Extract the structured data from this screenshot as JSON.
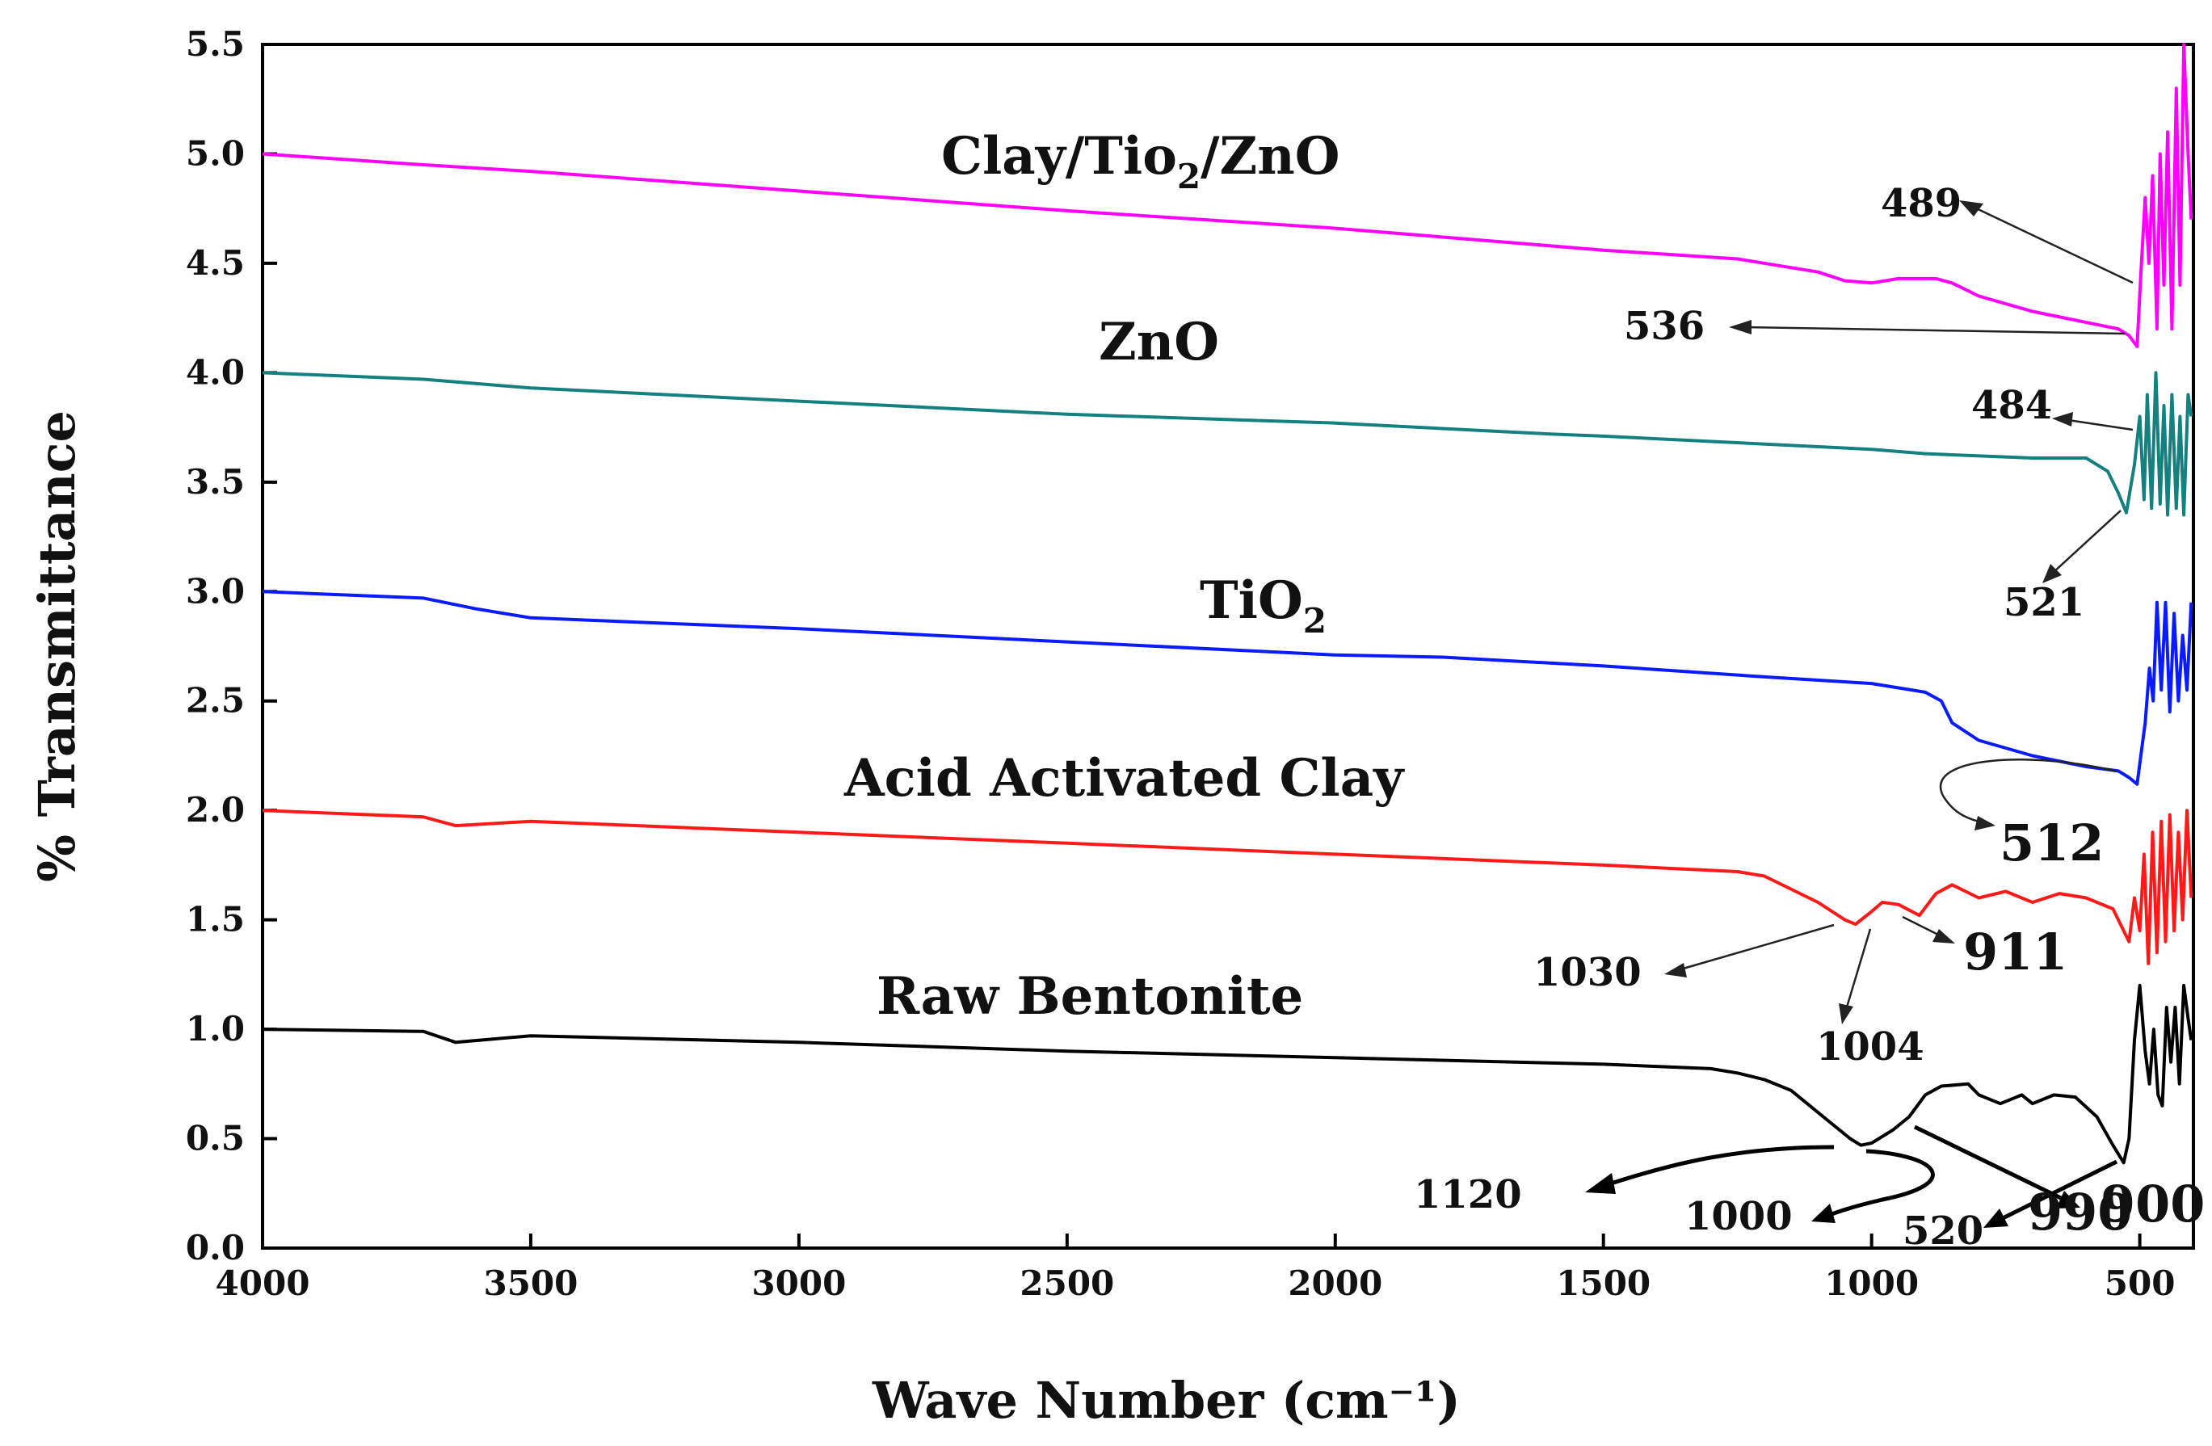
{
  "chart_data": {
    "type": "line",
    "title": "",
    "xlabel": "Wave Number (cm⁻¹)",
    "ylabel": "% Transmittance",
    "xlim": [
      4000,
      400
    ],
    "ylim": [
      0.0,
      5.5
    ],
    "xticks": [
      "4000",
      "3500",
      "3000",
      "2500",
      "2000",
      "1500",
      "1000",
      "500"
    ],
    "yticks": [
      "0.0",
      "0.5",
      "1.0",
      "1.5",
      "2.0",
      "2.5",
      "3.0",
      "3.5",
      "4.0",
      "4.5",
      "5.0",
      "5.5"
    ],
    "series": [
      {
        "name": "Clay/Tio₂/ZnO",
        "label_parts": [
          "Clay/Tio",
          "2",
          "/ZnO"
        ],
        "color": "#ff00ff",
        "x": [
          4000,
          3700,
          3500,
          3000,
          2500,
          2000,
          1500,
          1250,
          1100,
          1050,
          1000,
          950,
          880,
          850,
          800,
          700,
          600,
          540,
          520,
          505,
          498,
          490,
          483,
          476,
          468,
          462,
          455,
          448,
          440,
          432,
          425,
          418,
          410,
          404
        ],
        "y": [
          5.0,
          4.95,
          4.92,
          4.83,
          4.74,
          4.66,
          4.56,
          4.52,
          4.46,
          4.42,
          4.41,
          4.43,
          4.43,
          4.41,
          4.35,
          4.28,
          4.23,
          4.2,
          4.17,
          4.12,
          4.45,
          4.8,
          4.5,
          4.9,
          4.2,
          5.0,
          4.4,
          5.1,
          4.2,
          5.3,
          4.4,
          5.5,
          5.0,
          4.7
        ]
      },
      {
        "name": "ZnO",
        "label_parts": [
          "ZnO",
          "",
          ""
        ],
        "color": "#158080",
        "x": [
          4000,
          3700,
          3500,
          3000,
          2500,
          2000,
          1600,
          1500,
          1000,
          900,
          700,
          600,
          560,
          540,
          525,
          510,
          500,
          492,
          486,
          478,
          470,
          462,
          455,
          448,
          440,
          432,
          425,
          418,
          410,
          404
        ],
        "y": [
          4.0,
          3.97,
          3.93,
          3.87,
          3.81,
          3.77,
          3.72,
          3.71,
          3.65,
          3.63,
          3.61,
          3.61,
          3.55,
          3.45,
          3.36,
          3.58,
          3.8,
          3.42,
          3.9,
          3.38,
          4.0,
          3.4,
          3.85,
          3.35,
          3.9,
          3.38,
          3.8,
          3.35,
          3.9,
          3.8
        ]
      },
      {
        "name": "TiO₂",
        "label_parts": [
          "TiO",
          "2",
          ""
        ],
        "color": "#0a1cff",
        "x": [
          4000,
          3700,
          3600,
          3500,
          3000,
          2500,
          2000,
          1800,
          1500,
          1200,
          1000,
          900,
          870,
          850,
          800,
          700,
          600,
          540,
          520,
          505,
          498,
          490,
          482,
          475,
          468,
          460,
          452,
          444,
          436,
          428,
          420,
          412,
          404
        ],
        "y": [
          3.0,
          2.97,
          2.92,
          2.88,
          2.83,
          2.77,
          2.71,
          2.7,
          2.66,
          2.61,
          2.58,
          2.54,
          2.5,
          2.4,
          2.32,
          2.25,
          2.2,
          2.18,
          2.15,
          2.12,
          2.25,
          2.4,
          2.65,
          2.5,
          2.95,
          2.55,
          2.95,
          2.45,
          2.9,
          2.5,
          2.8,
          2.55,
          2.95
        ]
      },
      {
        "name": "Acid Activated Clay",
        "label_parts": [
          "Acid Activated Clay",
          "",
          ""
        ],
        "color": "#ff1a1a",
        "x": [
          4000,
          3700,
          3640,
          3500,
          3000,
          2500,
          2000,
          1500,
          1250,
          1200,
          1100,
          1050,
          1030,
          1004,
          980,
          950,
          911,
          880,
          850,
          800,
          750,
          700,
          650,
          600,
          550,
          520,
          510,
          500,
          492,
          484,
          476,
          468,
          460,
          452,
          444,
          436,
          428,
          420,
          412,
          404
        ],
        "y": [
          2.0,
          1.97,
          1.93,
          1.95,
          1.9,
          1.85,
          1.8,
          1.75,
          1.72,
          1.7,
          1.58,
          1.5,
          1.48,
          1.53,
          1.58,
          1.57,
          1.52,
          1.62,
          1.66,
          1.6,
          1.63,
          1.58,
          1.62,
          1.6,
          1.55,
          1.4,
          1.6,
          1.45,
          1.8,
          1.3,
          1.9,
          1.35,
          1.95,
          1.4,
          1.98,
          1.45,
          1.9,
          1.5,
          2.0,
          1.6
        ]
      },
      {
        "name": "Raw Bentonite",
        "label_parts": [
          "Raw Bentonite",
          "",
          ""
        ],
        "color": "#000000",
        "x": [
          4000,
          3700,
          3640,
          3500,
          3000,
          2500,
          2000,
          1500,
          1300,
          1250,
          1200,
          1150,
          1120,
          1080,
          1040,
          1020,
          1000,
          960,
          930,
          900,
          870,
          820,
          800,
          760,
          720,
          700,
          660,
          620,
          580,
          550,
          530,
          520,
          510,
          500,
          490,
          482,
          474,
          466,
          458,
          450,
          442,
          434,
          426,
          418,
          410,
          404
        ],
        "y": [
          1.0,
          0.99,
          0.94,
          0.97,
          0.94,
          0.9,
          0.87,
          0.84,
          0.82,
          0.8,
          0.77,
          0.72,
          0.66,
          0.58,
          0.5,
          0.47,
          0.48,
          0.54,
          0.6,
          0.7,
          0.74,
          0.75,
          0.7,
          0.66,
          0.7,
          0.66,
          0.7,
          0.69,
          0.6,
          0.47,
          0.39,
          0.5,
          0.95,
          1.2,
          0.9,
          0.75,
          1.0,
          0.7,
          0.65,
          1.1,
          0.85,
          1.1,
          0.75,
          1.2,
          1.05,
          0.95
        ]
      }
    ],
    "annotations": [
      {
        "text": "489"
      },
      {
        "text": "536"
      },
      {
        "text": "484"
      },
      {
        "text": "521"
      },
      {
        "text": "512"
      },
      {
        "text": "1030"
      },
      {
        "text": "911"
      },
      {
        "text": "1004"
      },
      {
        "text": "1120"
      },
      {
        "text": "1000"
      },
      {
        "text": "520"
      },
      {
        "text": "990"
      },
      {
        "text": "900"
      }
    ],
    "grid": false,
    "legend": "none"
  }
}
